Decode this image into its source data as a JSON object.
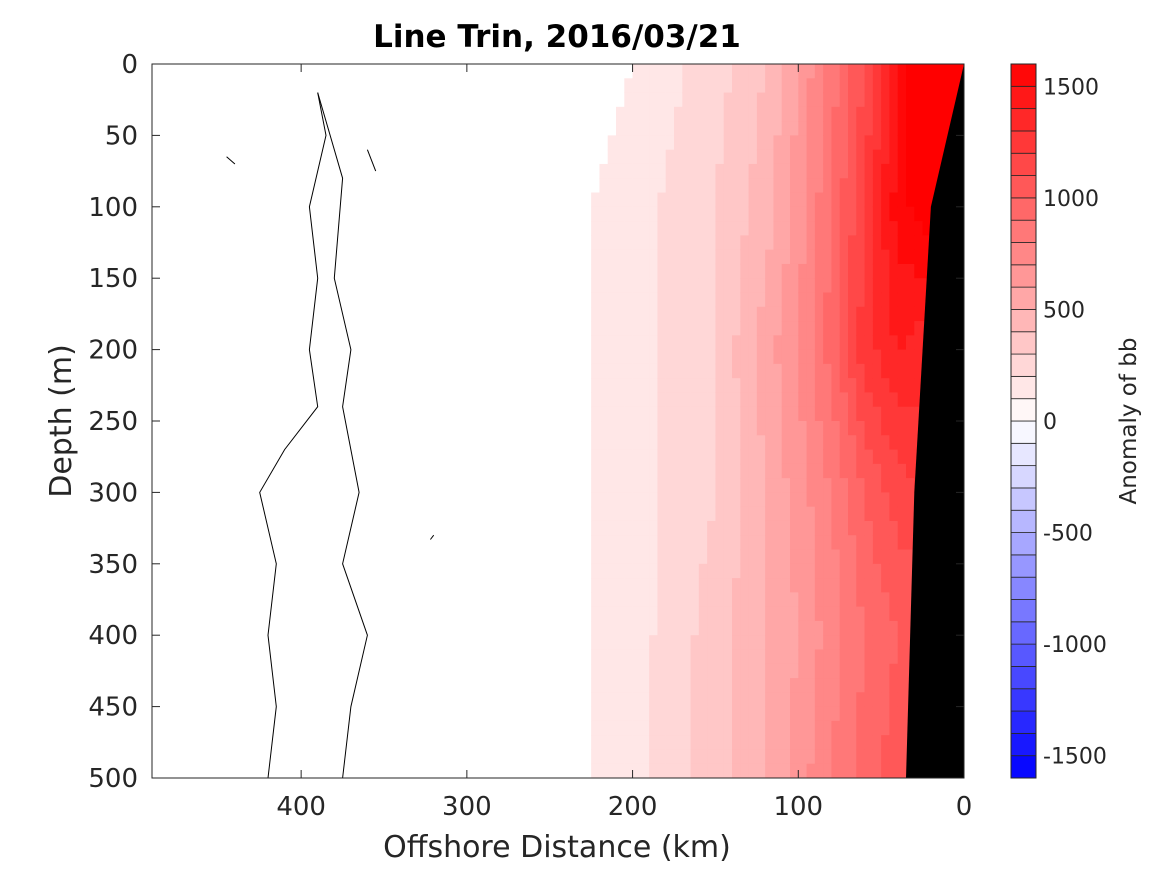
{
  "chart_data": {
    "type": "heatmap",
    "title": "Line Trin, 2016/03/21",
    "xlabel": "Offshore Distance (km)",
    "ylabel": "Depth (m)",
    "xlim": [
      490,
      0
    ],
    "ylim": [
      0,
      500
    ],
    "x_reversed": true,
    "y_reversed": true,
    "x_ticks": [
      400,
      300,
      200,
      100,
      0
    ],
    "x_tick_labels": [
      "400",
      "300",
      "200",
      "100",
      "0"
    ],
    "y_ticks": [
      0,
      50,
      100,
      150,
      200,
      250,
      300,
      350,
      400,
      450,
      500
    ],
    "y_tick_labels": [
      "0",
      "50",
      "100",
      "150",
      "200",
      "250",
      "300",
      "350",
      "400",
      "450",
      "500"
    ],
    "colorbar": {
      "label": "Anomaly of bb",
      "range": [
        -1600,
        1600
      ],
      "levels": 32,
      "ticks": [
        1500,
        1000,
        500,
        0,
        -500,
        -1000,
        -1500
      ],
      "tick_labels": [
        "1500",
        "1000",
        "500",
        "0",
        "-500",
        "-1000",
        "-1500"
      ],
      "color_negative": "#0000ff",
      "color_zero": "#ffffff",
      "color_positive": "#ff0000"
    },
    "anomaly_field": {
      "depth": [
        0,
        100,
        200,
        300,
        400,
        500
      ],
      "distance": [
        250,
        200,
        150,
        120,
        100,
        80,
        60,
        40,
        25
      ],
      "values": [
        [
          0,
          100,
          250,
          400,
          600,
          850,
          1100,
          1500,
          1700
        ],
        [
          50,
          150,
          300,
          450,
          650,
          900,
          1200,
          1550,
          1650
        ],
        [
          50,
          150,
          300,
          550,
          700,
          950,
          1250,
          1400,
          1350
        ],
        [
          50,
          150,
          300,
          500,
          650,
          800,
          1000,
          1150,
          1200
        ],
        [
          50,
          150,
          350,
          500,
          600,
          750,
          900,
          1000,
          1000
        ],
        [
          50,
          150,
          350,
          500,
          650,
          800,
          950,
          1050,
          1000
        ]
      ]
    },
    "seafloor": {
      "color": "#000000",
      "boundary": [
        [
          0,
          0
        ],
        [
          20,
          100
        ],
        [
          30,
          300
        ],
        [
          35,
          500
        ]
      ]
    },
    "zero_contours": [
      [
        [
          390,
          20
        ],
        [
          385,
          50
        ],
        [
          395,
          100
        ],
        [
          390,
          150
        ],
        [
          395,
          200
        ],
        [
          390,
          240
        ],
        [
          410,
          270
        ],
        [
          425,
          300
        ],
        [
          415,
          350
        ],
        [
          420,
          400
        ],
        [
          415,
          450
        ],
        [
          420,
          500
        ]
      ],
      [
        [
          390,
          20
        ],
        [
          375,
          80
        ],
        [
          380,
          150
        ],
        [
          370,
          200
        ],
        [
          375,
          240
        ],
        [
          365,
          300
        ],
        [
          375,
          350
        ],
        [
          360,
          400
        ],
        [
          370,
          450
        ],
        [
          375,
          500
        ]
      ],
      [
        [
          445,
          65
        ],
        [
          440,
          70
        ]
      ],
      [
        [
          360,
          60
        ],
        [
          355,
          75
        ]
      ],
      [
        [
          320,
          330
        ],
        [
          322,
          333
        ]
      ]
    ]
  }
}
